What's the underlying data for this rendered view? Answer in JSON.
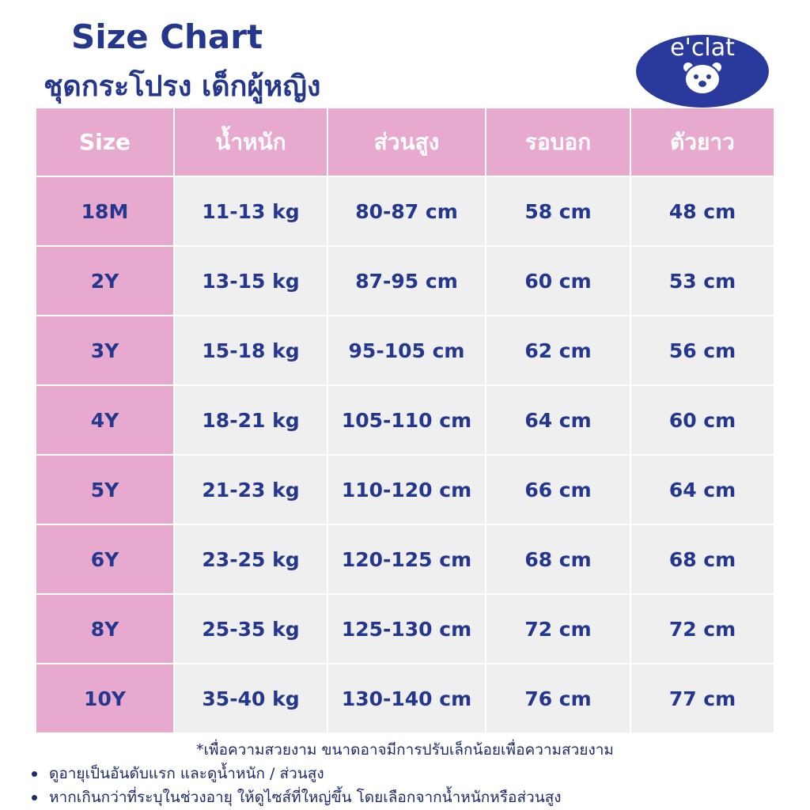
{
  "header": {
    "title": "Size Chart",
    "subtitle": "ชุดกระโปรง เด็กผู้หญิง",
    "logo": "e'clat"
  },
  "table": {
    "columns": [
      "Size",
      "น้ำหนัก",
      "ส่วนสูง",
      "รอบอก",
      "ตัวยาว"
    ],
    "rows": [
      [
        "18M",
        "11-13 kg",
        "80-87 cm",
        "58 cm",
        "48 cm"
      ],
      [
        "2Y",
        "13-15 kg",
        "87-95 cm",
        "60 cm",
        "53 cm"
      ],
      [
        "3Y",
        "15-18 kg",
        "95-105 cm",
        "62 cm",
        "56 cm"
      ],
      [
        "4Y",
        "18-21 kg",
        "105-110 cm",
        "64 cm",
        "60 cm"
      ],
      [
        "5Y",
        "21-23 kg",
        "110-120 cm",
        "66 cm",
        "64 cm"
      ],
      [
        "6Y",
        "23-25 kg",
        "120-125 cm",
        "68 cm",
        "68 cm"
      ],
      [
        "8Y",
        "25-35 kg",
        "125-130 cm",
        "72 cm",
        "72 cm"
      ],
      [
        "10Y",
        "35-40 kg",
        "130-140 cm",
        "76 cm",
        "77 cm"
      ]
    ]
  },
  "notes": {
    "remark": "*เพื่อความสวยงาม ขนาดอาจมีการปรับเล็กน้อยเพื่อความสวยงาม",
    "bullets": [
      "ดูอายุเป็นอันดับแรก  และดูน้ำหนัก / ส่วนสูง",
      "หากเกินกว่าที่ระบุในช่วงอายุ ให้ดูไซส์ที่ใหญ่ขึ้น โดยเลือกจากน้ำหนักหรือส่วนสูง"
    ]
  }
}
